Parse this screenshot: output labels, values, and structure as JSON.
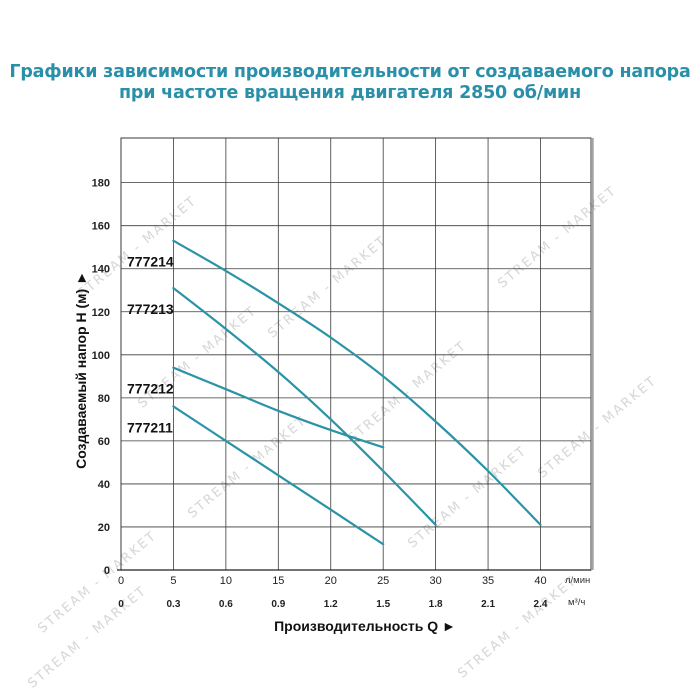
{
  "title": {
    "line1": "Графики зависимости производительности от создаваемого напора",
    "line2": "при частоте вращения двигателя 2850 об/мин"
  },
  "watermark": "STREAM - MARKET",
  "colors": {
    "title": "#2a8fa8",
    "curve": "#2a94a6",
    "grid": "#3a3a3a"
  },
  "chart_data": {
    "type": "line",
    "title": "Графики зависимости производительности от создаваемого напора при частоте вращения двигателя 2850 об/мин",
    "xlabel": "Производительность Q ►",
    "ylabel": "Создаваемый напор H (м) ►",
    "x_unit_primary": "л/мин",
    "x_unit_secondary": "м³/ч",
    "x_ticks_primary": [
      "0",
      "5",
      "10",
      "15",
      "20",
      "25",
      "30",
      "35",
      "40"
    ],
    "x_ticks_secondary": [
      "0",
      "0.3",
      "0.6",
      "0.9",
      "1.2",
      "1.5",
      "1.8",
      "2.1",
      "2.4"
    ],
    "y_ticks": [
      "0",
      "20",
      "40",
      "60",
      "80",
      "100",
      "120",
      "140",
      "160",
      "180"
    ],
    "xlim": [
      0,
      40
    ],
    "ylim": [
      0,
      195
    ],
    "grid": true,
    "series": [
      {
        "name": "777214",
        "x": [
          5,
          10,
          15,
          20,
          25,
          30,
          35,
          40
        ],
        "y": [
          153,
          139,
          124,
          108,
          90,
          69,
          46,
          21
        ]
      },
      {
        "name": "777213",
        "x": [
          5,
          10,
          15,
          20,
          25,
          30
        ],
        "y": [
          131,
          112,
          92,
          70,
          46,
          21
        ]
      },
      {
        "name": "777212",
        "x": [
          5,
          10,
          15,
          20,
          25
        ],
        "y": [
          94,
          84,
          74,
          65,
          57
        ]
      },
      {
        "name": "777211",
        "x": [
          5,
          10,
          15,
          20,
          25
        ],
        "y": [
          76,
          60,
          44,
          28,
          12
        ]
      }
    ]
  }
}
